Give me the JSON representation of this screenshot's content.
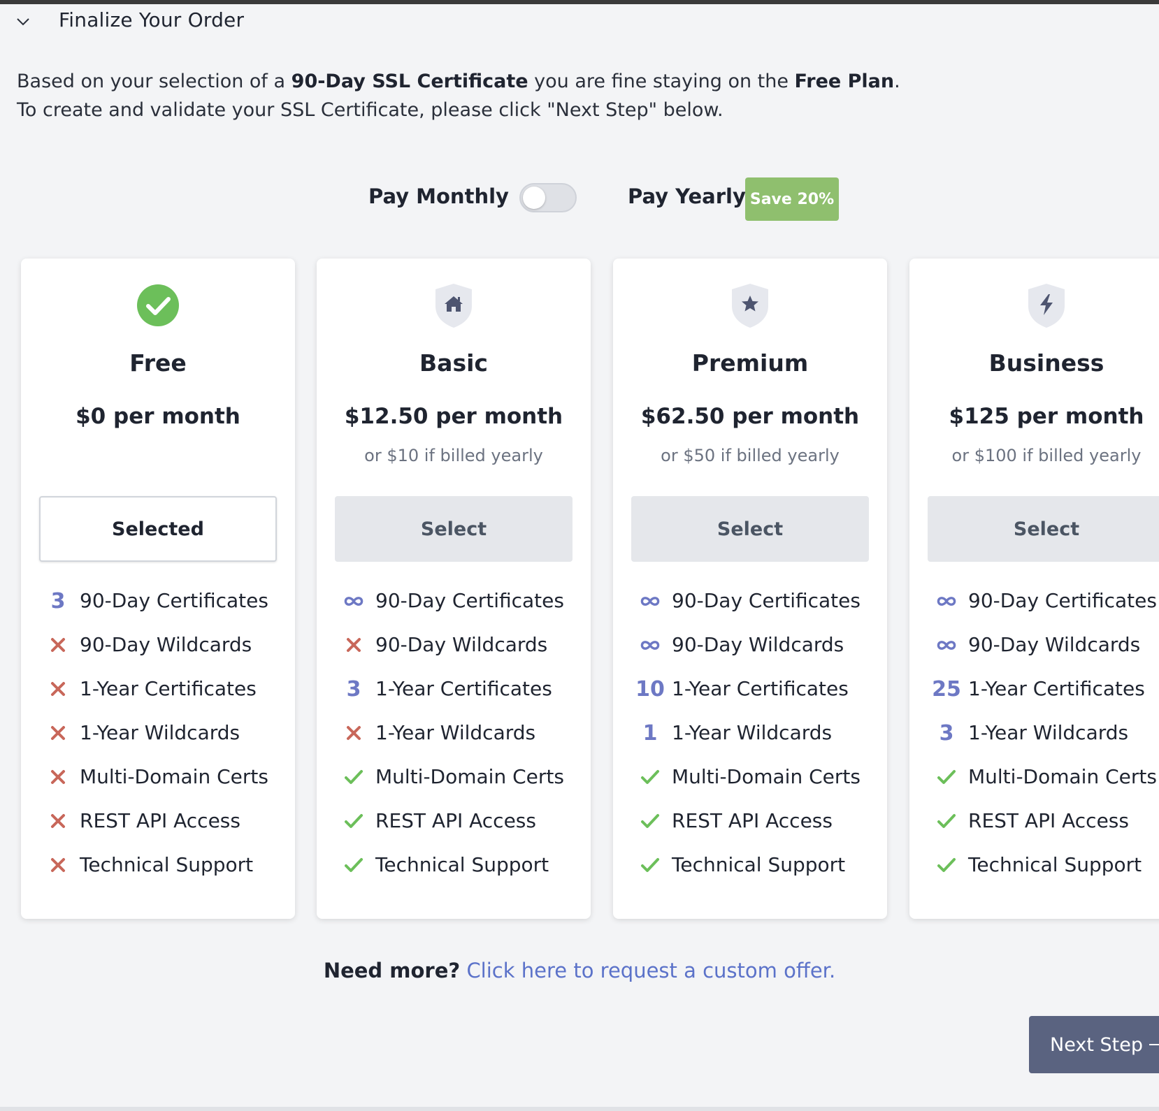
{
  "section": {
    "title": "Finalize Your Order"
  },
  "intro": {
    "line1_a": "Based on your selection of a ",
    "line1_b": "90-Day SSL Certificate",
    "line1_c": " you are fine staying on the ",
    "line1_d": "Free Plan",
    "line1_e": ".",
    "line2": "To create and validate your SSL Certificate, please click \"Next Step\" below."
  },
  "billing": {
    "monthly_label": "Pay Monthly",
    "yearly_label": "Pay Yearly",
    "save_badge": "Save 20%",
    "yearly_enabled": false
  },
  "plans": [
    {
      "name": "Free",
      "icon": "check-circle-icon",
      "price": "$0 per month",
      "alt_price": "",
      "button": "Selected",
      "selected": true,
      "features": [
        {
          "mark": "3",
          "label": "90-Day Certificates"
        },
        {
          "mark": "x",
          "label": "90-Day Wildcards"
        },
        {
          "mark": "x",
          "label": "1-Year Certificates"
        },
        {
          "mark": "x",
          "label": "1-Year Wildcards"
        },
        {
          "mark": "x",
          "label": "Multi-Domain Certs"
        },
        {
          "mark": "x",
          "label": "REST API Access"
        },
        {
          "mark": "x",
          "label": "Technical Support"
        }
      ]
    },
    {
      "name": "Basic",
      "icon": "shield-home-icon",
      "price": "$12.50 per month",
      "alt_price": "or $10 if billed yearly",
      "button": "Select",
      "selected": false,
      "features": [
        {
          "mark": "infinity",
          "label": "90-Day Certificates"
        },
        {
          "mark": "x",
          "label": "90-Day Wildcards"
        },
        {
          "mark": "3",
          "label": "1-Year Certificates"
        },
        {
          "mark": "x",
          "label": "1-Year Wildcards"
        },
        {
          "mark": "check",
          "label": "Multi-Domain Certs"
        },
        {
          "mark": "check",
          "label": "REST API Access"
        },
        {
          "mark": "check",
          "label": "Technical Support"
        }
      ]
    },
    {
      "name": "Premium",
      "icon": "shield-star-icon",
      "price": "$62.50 per month",
      "alt_price": "or $50 if billed yearly",
      "button": "Select",
      "selected": false,
      "features": [
        {
          "mark": "infinity",
          "label": "90-Day Certificates"
        },
        {
          "mark": "infinity",
          "label": "90-Day Wildcards"
        },
        {
          "mark": "10",
          "label": "1-Year Certificates"
        },
        {
          "mark": "1",
          "label": "1-Year Wildcards"
        },
        {
          "mark": "check",
          "label": "Multi-Domain Certs"
        },
        {
          "mark": "check",
          "label": "REST API Access"
        },
        {
          "mark": "check",
          "label": "Technical Support"
        }
      ]
    },
    {
      "name": "Business",
      "icon": "shield-bolt-icon",
      "price": "$125 per month",
      "alt_price": "or $100 if billed yearly",
      "button": "Select",
      "selected": false,
      "features": [
        {
          "mark": "infinity",
          "label": "90-Day Certificates"
        },
        {
          "mark": "infinity",
          "label": "90-Day Wildcards"
        },
        {
          "mark": "25",
          "label": "1-Year Certificates"
        },
        {
          "mark": "3",
          "label": "1-Year Wildcards"
        },
        {
          "mark": "check",
          "label": "Multi-Domain Certs"
        },
        {
          "mark": "check",
          "label": "REST API Access"
        },
        {
          "mark": "check",
          "label": "Technical Support"
        }
      ]
    }
  ],
  "footer": {
    "need_more": "Need more?",
    "custom_offer_link": "Click here to request a custom offer.",
    "next_step": "Next Step"
  },
  "colors": {
    "check": "#6cbf5a",
    "cross": "#c8675a",
    "number": "#6d78c4",
    "shield": "#e6e8ee",
    "shield_glyph": "#4e5570",
    "free_check_bg": "#6cbf5a"
  }
}
